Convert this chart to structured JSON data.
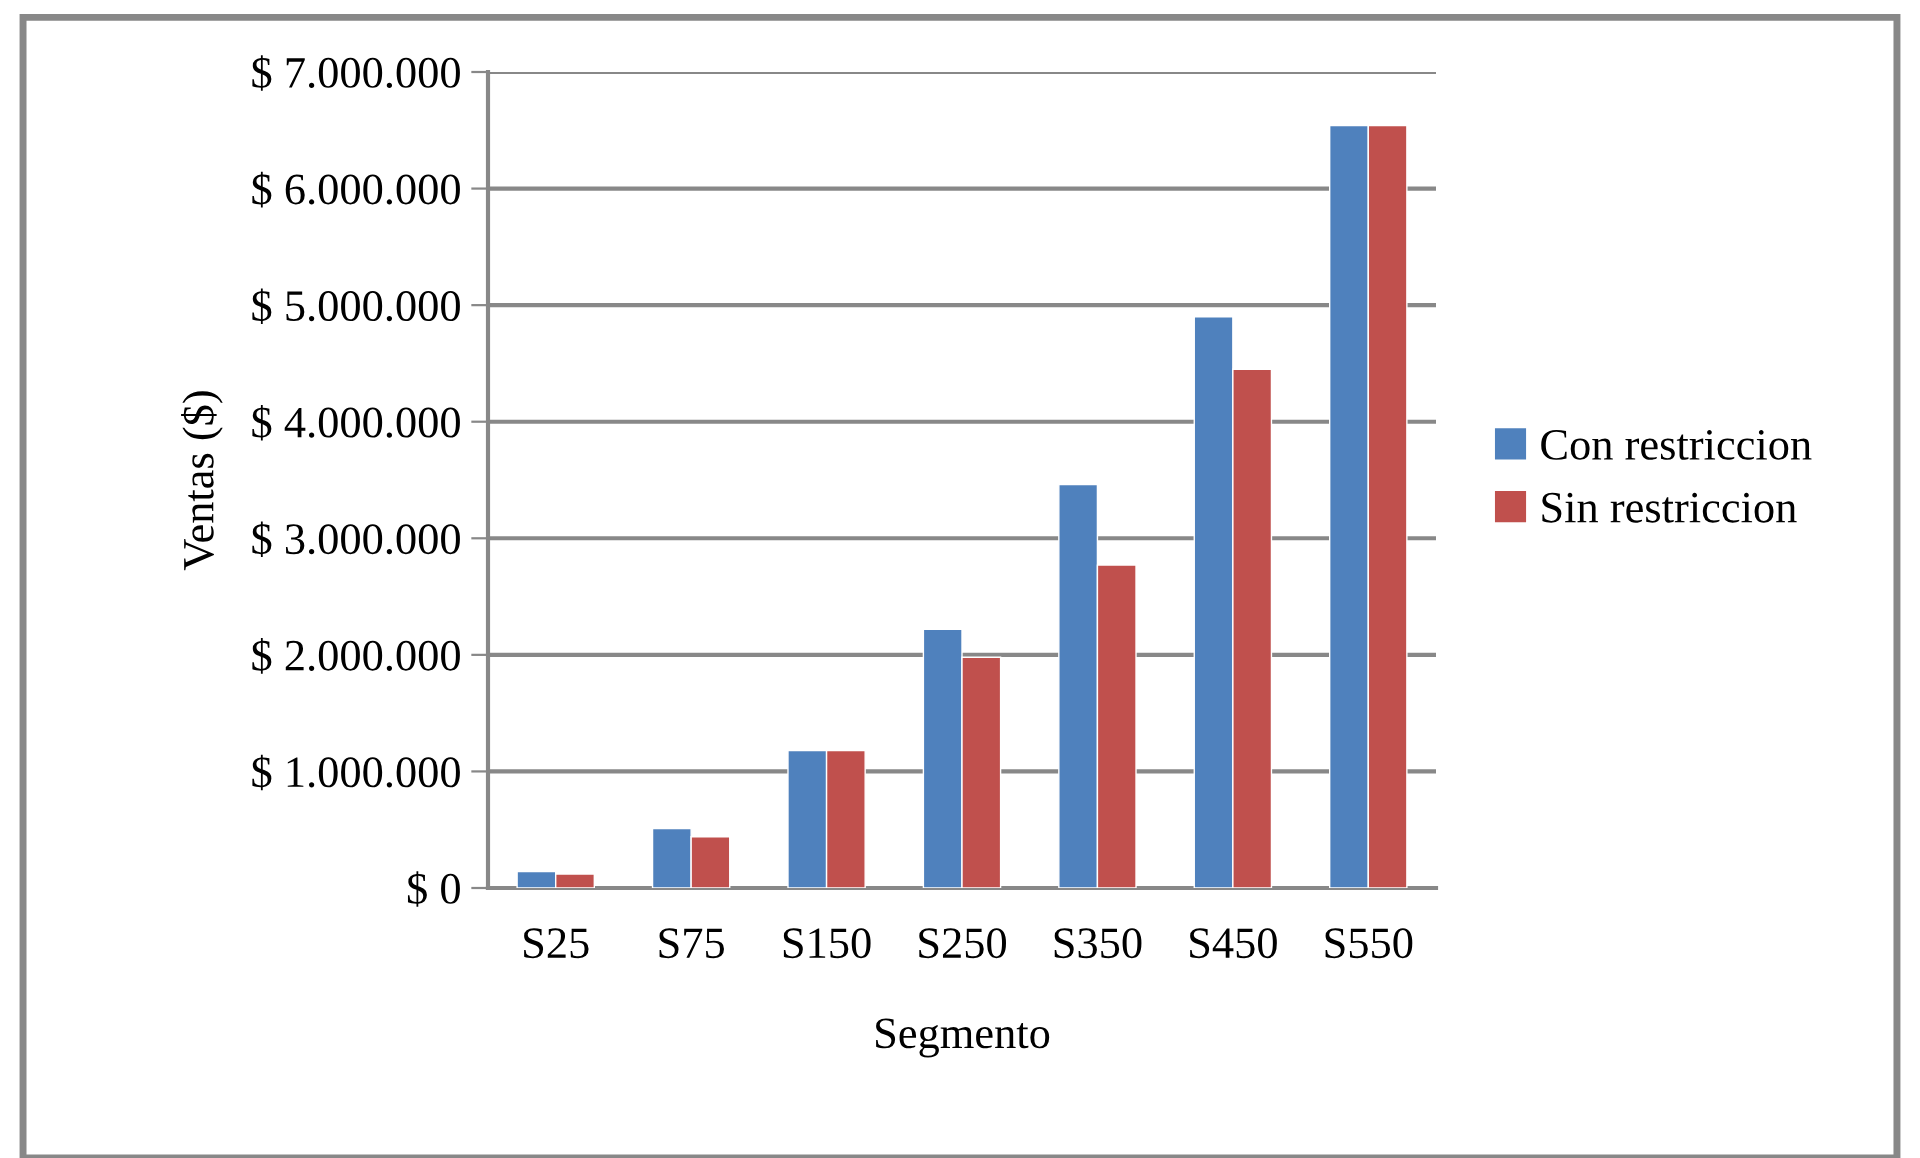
{
  "chart_data": {
    "type": "bar",
    "xlabel": "Segmento",
    "ylabel": "Ventas ($)",
    "categories": [
      "S25",
      "S75",
      "S150",
      "S250",
      "S350",
      "S450",
      "S550"
    ],
    "series": [
      {
        "name": "Con restriccion",
        "color": "#4f81bd",
        "values": [
          140000,
          510000,
          1180000,
          2220000,
          3460000,
          4900000,
          6540000
        ]
      },
      {
        "name": "Sin restriccion",
        "color": "#c0504d",
        "values": [
          120000,
          440000,
          1180000,
          1980000,
          2770000,
          4450000,
          6540000
        ]
      }
    ],
    "ylim": [
      0,
      7000000
    ],
    "yticks": [
      {
        "value": 0,
        "label": "$ 0"
      },
      {
        "value": 1000000,
        "label": "$ 1.000.000"
      },
      {
        "value": 2000000,
        "label": "$ 2.000.000"
      },
      {
        "value": 3000000,
        "label": "$ 3.000.000"
      },
      {
        "value": 4000000,
        "label": "$ 4.000.000"
      },
      {
        "value": 5000000,
        "label": "$ 5.000.000"
      },
      {
        "value": 6000000,
        "label": "$ 6.000.000"
      },
      {
        "value": 7000000,
        "label": "$ 7.000.000"
      }
    ],
    "grid": "y",
    "legend": "right"
  }
}
